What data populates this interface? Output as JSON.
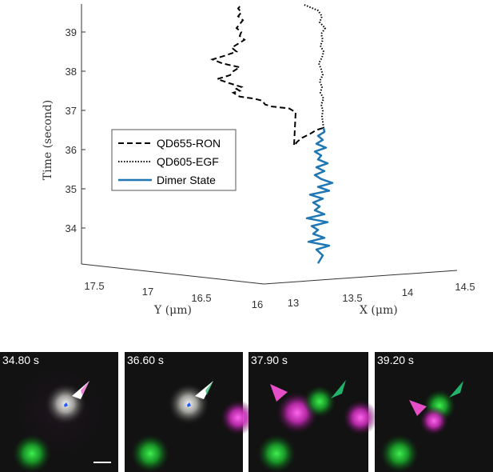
{
  "chart_data": {
    "type": "line",
    "dimensions": "3d",
    "ylabel": "Time (second)",
    "xlabel_y": "Y (μm)",
    "xlabel_x": "X (μm)",
    "time_ticks": [
      "34",
      "35",
      "36",
      "37",
      "38",
      "39"
    ],
    "y_um_ticks": [
      "17.5",
      "17",
      "16.5",
      "16"
    ],
    "x_um_ticks": [
      "13",
      "13.5",
      "14",
      "14.5"
    ],
    "legend": {
      "placement": "left",
      "entries": [
        {
          "label": "QD655-RON",
          "style": "dashed",
          "color": "#000000"
        },
        {
          "label": "QD605-EGF",
          "style": "dotted",
          "color": "#000000"
        },
        {
          "label": "Dimer State",
          "style": "solid",
          "color": "#1f77b4"
        }
      ]
    },
    "series": [
      {
        "name": "QD655-RON",
        "color": "#000000",
        "style": "dashed",
        "t": [
          36.55,
          36.5,
          36.4,
          36.3,
          36.2,
          36.1,
          36.95,
          37.05,
          37.1,
          37.15,
          37.25,
          37.3,
          37.35,
          37.45,
          37.5,
          37.55,
          37.6,
          37.7,
          37.8,
          37.9,
          38.0,
          38.1,
          38.2,
          38.3,
          38.4,
          38.5,
          38.6,
          38.7,
          38.8,
          38.9,
          39.0,
          39.1,
          39.2,
          39.3,
          39.4,
          39.5,
          39.6,
          39.7
        ]
      },
      {
        "name": "QD605-EGF",
        "color": "#000000",
        "style": "dotted",
        "t": [
          36.55,
          36.7,
          36.85,
          37.0,
          37.15,
          37.3,
          37.45,
          37.6,
          37.75,
          37.9,
          38.05,
          38.2,
          38.35,
          38.5,
          38.65,
          38.8,
          38.95,
          39.1,
          39.25,
          39.4,
          39.55,
          39.7
        ]
      },
      {
        "name": "Dimer State",
        "color": "#1f77b4",
        "style": "solid",
        "t": [
          33.1,
          33.3,
          33.45,
          33.55,
          33.65,
          33.75,
          33.85,
          33.95,
          34.05,
          34.15,
          34.25,
          34.35,
          34.45,
          34.55,
          34.65,
          34.75,
          34.85,
          34.95,
          35.05,
          35.15,
          35.25,
          35.35,
          35.45,
          35.55,
          35.65,
          35.75,
          35.85,
          35.95,
          36.05,
          36.15,
          36.25,
          36.35,
          36.45,
          36.55
        ]
      }
    ]
  },
  "panels": [
    {
      "label": "34.80 s",
      "arrows": [
        {
          "color": "#ffffff",
          "tip": "pink-green"
        }
      ]
    },
    {
      "label": "36.60 s",
      "arrows": [
        {
          "color": "#ffffff",
          "tip": "pink-green"
        }
      ]
    },
    {
      "label": "37.90 s",
      "arrows": [
        {
          "color": "#e44fc8"
        },
        {
          "color": "#22b36b"
        }
      ]
    },
    {
      "label": "39.20 s",
      "arrows": [
        {
          "color": "#e44fc8"
        },
        {
          "color": "#22b36b"
        }
      ]
    }
  ],
  "colors": {
    "dimer": "#1f77b4",
    "magenta_qd": "#e03ccd",
    "green_qd": "#22c43a",
    "magenta_arrow": "#e44fc8",
    "green_arrow": "#22b36b"
  }
}
